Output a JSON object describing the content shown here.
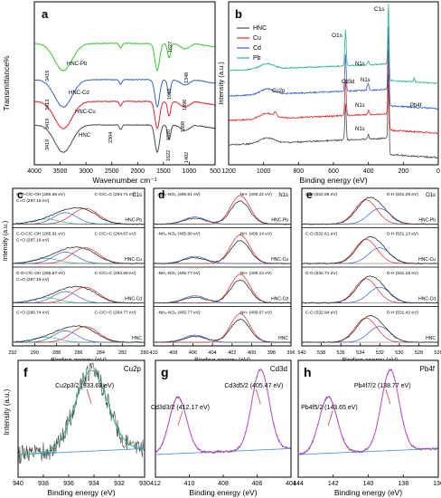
{
  "chart_data": [
    {
      "id": "a",
      "type": "line",
      "panel_label": "a",
      "xlabel": "Wavenumber cm⁻¹",
      "ylabel": "Transmittance%",
      "xlim": [
        4000,
        500
      ],
      "x_ticks": [
        "4000",
        "3500",
        "3000",
        "2500",
        "2000",
        "1500",
        "1000",
        "500"
      ],
      "series": [
        {
          "name": "HNC-Pb",
          "color": "#38c832",
          "offset": 3.0
        },
        {
          "name": "HNC-Cd",
          "color": "#3a5fcd",
          "offset": 2.0
        },
        {
          "name": "HNC-Cu",
          "color": "#e0262d",
          "offset": 1.0
        },
        {
          "name": "HNC",
          "color": "#4b4b4b",
          "offset": 0.0
        }
      ],
      "annotations": [
        "3419",
        "3413",
        "3419",
        "3419",
        "2304",
        "1627",
        "1616",
        "1620",
        "1622",
        "1348",
        "1396",
        "1398",
        "1402"
      ]
    },
    {
      "id": "b",
      "type": "line",
      "panel_label": "b",
      "xlabel": "Binding energy (eV)",
      "ylabel": "Intensity (a.u.)",
      "xlim": [
        1200,
        0
      ],
      "x_ticks": [
        "1200",
        "1000",
        "800",
        "600",
        "400",
        "200",
        "0"
      ],
      "legend": [
        "HNC",
        "Cu",
        "Cd",
        "Pb"
      ],
      "series": [
        {
          "name": "HNC",
          "color": "#4b4b4b",
          "offset": 0
        },
        {
          "name": "Cu",
          "color": "#e0262d",
          "offset": 1
        },
        {
          "name": "Cd",
          "color": "#3a5fcd",
          "offset": 2
        },
        {
          "name": "Pb",
          "color": "#2bb48c",
          "offset": 3
        }
      ],
      "annotations": [
        "C1s",
        "O1s",
        "N1s",
        "N1s",
        "N1s",
        "N1s",
        "Cd3d",
        "Cu2p",
        "Pb4f"
      ]
    },
    {
      "id": "c",
      "type": "line",
      "panel_label": "c",
      "corner_label": "C1s",
      "xlabel": "Binding energy (eV)",
      "ylabel": "Intensity (a.u.)",
      "x_ticks": [
        "292",
        "290",
        "288",
        "286",
        "284",
        "282",
        "280"
      ],
      "rows": [
        {
          "label": "HNC-Pb",
          "notes": [
            "C-O-C/C-OH (285.65 eV)",
            "C=O (287.18 eV)",
            "C-C/C=C (284.71 eV)"
          ]
        },
        {
          "label": "HNC-Cu",
          "notes": [
            "C-O-C/C-OH (285.91 eV)",
            "C=O (287.18 eV)",
            "C-C/C=C (284.67 eV)"
          ]
        },
        {
          "label": "HNC-Cd",
          "notes": [
            "C-O-C/C-OH (285.87 eV)",
            "C=O (287.19 eV)",
            "C-C/C=C (284.69 eV)"
          ]
        },
        {
          "label": "HNC",
          "notes": [
            "C=O (286.74 eV)",
            "C-C/C=C (284.77 eV)"
          ]
        }
      ]
    },
    {
      "id": "d",
      "type": "line",
      "panel_label": "d",
      "corner_label": "N1s",
      "xlabel": "Binding energy (eV)",
      "ylabel": "",
      "x_ticks": [
        "410",
        "408",
        "406",
        "404",
        "402",
        "400",
        "398",
        "396"
      ],
      "rows": [
        {
          "label": "HNC-Pb",
          "notes": [
            "-NH₂-NO₃ (405.91 eV)",
            "-NH- (400.22 eV)"
          ]
        },
        {
          "label": "HNC-Cu",
          "notes": [
            "-NH₂-NO₃ (405.80 eV)",
            "-NH- (400.14 eV)"
          ]
        },
        {
          "label": "HNC-Cd",
          "notes": [
            "-NH₂-NO₃ (405.77 eV)",
            "-NH- (400.13 eV)"
          ]
        },
        {
          "label": "HNC",
          "notes": [
            "-NH₂-NO₃ (405.77 eV)",
            "-NH- (400.07 eV)"
          ]
        }
      ]
    },
    {
      "id": "e",
      "type": "line",
      "panel_label": "e",
      "corner_label": "O1s",
      "xlabel": "Binding energy (eV)",
      "ylabel": "",
      "x_ticks": [
        "540",
        "538",
        "536",
        "534",
        "532",
        "530",
        "528",
        "526"
      ],
      "rows": [
        {
          "label": "HNC-Pb",
          "notes": [
            "C-O (532.86 eV)",
            "O-H (531.29 eV)"
          ]
        },
        {
          "label": "HNC-Cu",
          "notes": [
            "C-O (532.61 eV)",
            "O-H (531.13 eV)"
          ]
        },
        {
          "label": "HNC-Cd",
          "notes": [
            "C-O (532.71 eV)",
            "O-H (531.18 eV)"
          ]
        },
        {
          "label": "HNC",
          "notes": [
            "C-O (532.94 eV)",
            "O-H (531.42 eV)"
          ]
        }
      ]
    },
    {
      "id": "f",
      "type": "line",
      "panel_label": "f",
      "corner_label": "Cu2p",
      "xlabel": "Binding energy (eV)",
      "ylabel": "Intensity (a.u.)",
      "x_ticks": [
        "940",
        "938",
        "936",
        "934",
        "932",
        "930"
      ],
      "peaks": [
        {
          "label": "Cu2p3/2 (933.63 eV)",
          "x": 933.63
        }
      ]
    },
    {
      "id": "g",
      "type": "line",
      "panel_label": "g",
      "corner_label": "Cd3d",
      "xlabel": "Binding energy (eV)",
      "ylabel": "",
      "x_ticks": [
        "412",
        "410",
        "408",
        "406",
        "404"
      ],
      "peaks": [
        {
          "label": "Cd3d5/2 (405.47 eV)",
          "x": 405.47
        },
        {
          "label": "Cd3d3/2 (412.17 eV)",
          "x": 412.17
        }
      ]
    },
    {
      "id": "h",
      "type": "line",
      "panel_label": "h",
      "corner_label": "Pb4f",
      "xlabel": "Binding energy (eV)",
      "ylabel": "",
      "x_ticks": [
        "144",
        "142",
        "140",
        "138",
        "136"
      ],
      "peaks": [
        {
          "label": "Pb4f7/2 (138.77 eV)",
          "x": 138.77
        },
        {
          "label": "Pb4f5/2 (143.65 eV)",
          "x": 143.65
        }
      ]
    }
  ]
}
